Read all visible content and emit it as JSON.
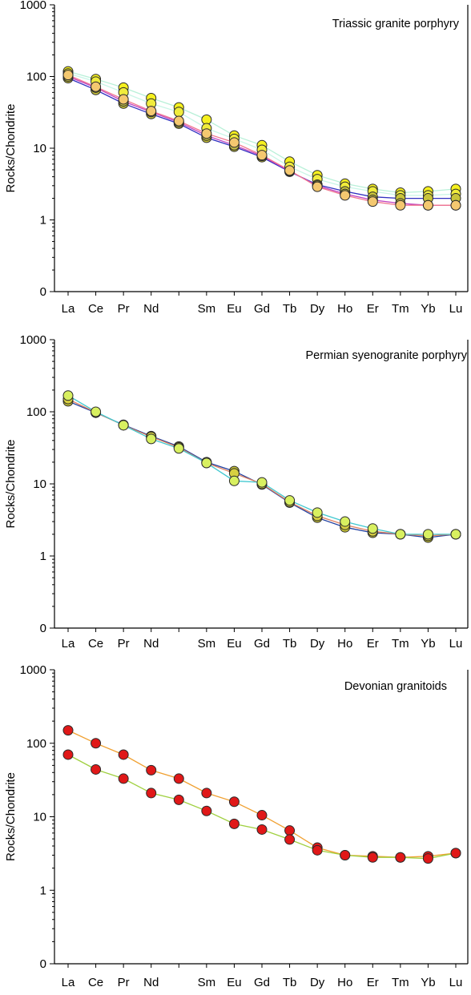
{
  "chart_data": [
    {
      "type": "line",
      "title": "Triassic granite porphyry",
      "xlabel": "",
      "ylabel": "Rocks/Chondrite",
      "yscale": "log",
      "ylim": [
        0.1,
        1000
      ],
      "y_ticks": [
        0.1,
        1,
        10,
        100,
        1000
      ],
      "y_tick_labels": [
        "0",
        "1",
        "10",
        "100",
        "1000"
      ],
      "categories": [
        "La",
        "Ce",
        "Pr",
        "Nd",
        "",
        "Sm",
        "Eu",
        "Gd",
        "Tb",
        "Dy",
        "Ho",
        "Er",
        "Tm",
        "Yb",
        "Lu"
      ],
      "grid": false,
      "series": [
        {
          "line_color": "#b8f0d8",
          "marker_color": "#f5f01e",
          "values": [
            118,
            92,
            70,
            50,
            37,
            25,
            15,
            11,
            6.5,
            4.2,
            3.2,
            2.7,
            2.4,
            2.5,
            2.7
          ]
        },
        {
          "line_color": "#c8f5e6",
          "marker_color": "#f0ec3c",
          "values": [
            110,
            85,
            60,
            42,
            32,
            19,
            13.5,
            9.5,
            5.5,
            3.7,
            2.9,
            2.5,
            2.2,
            2.2,
            2.3
          ]
        },
        {
          "line_color": "#3030c0",
          "marker_color": "#c9c43a",
          "values": [
            95,
            65,
            42,
            30,
            22,
            14,
            10.5,
            7.5,
            4.7,
            3.1,
            2.5,
            2.1,
            2.0,
            2.0,
            2.0
          ]
        },
        {
          "line_color": "#c040c0",
          "marker_color": "#c7c045",
          "values": [
            100,
            70,
            45,
            32,
            23,
            15,
            11,
            7.8,
            4.8,
            3.0,
            2.3,
            1.9,
            1.7,
            1.6,
            1.6
          ]
        },
        {
          "line_color": "#f07890",
          "marker_color": "#f4c870",
          "values": [
            105,
            72,
            48,
            33,
            24,
            16,
            12,
            8.0,
            4.9,
            2.9,
            2.2,
            1.8,
            1.6,
            1.6,
            1.6
          ]
        }
      ]
    },
    {
      "type": "line",
      "title": "Permian  syenogranite porphyry",
      "xlabel": "",
      "ylabel": "Rocks/Chondrite",
      "yscale": "log",
      "ylim": [
        0.1,
        1000
      ],
      "y_ticks": [
        0.1,
        1,
        10,
        100,
        1000
      ],
      "y_tick_labels": [
        "0",
        "1",
        "10",
        "100",
        "1000"
      ],
      "categories": [
        "La",
        "Ce",
        "Pr",
        "Nd",
        "",
        "Sm",
        "Eu",
        "Gd",
        "Tb",
        "Dy",
        "Ho",
        "Er",
        "Tm",
        "Yb",
        "Lu"
      ],
      "grid": false,
      "series": [
        {
          "line_color": "#2040a0",
          "marker_color": "#c8c438",
          "values": [
            140,
            97,
            66,
            46,
            33,
            20,
            15,
            9.8,
            5.5,
            3.4,
            2.5,
            2.1,
            2.0,
            1.8,
            2.0
          ]
        },
        {
          "line_color": "#e08060",
          "marker_color": "#d8d040",
          "values": [
            150,
            98,
            65,
            45,
            32,
            19.5,
            14,
            10,
            5.6,
            3.6,
            2.7,
            2.2,
            2.0,
            1.9,
            2.0
          ]
        },
        {
          "line_color": "#40c8d0",
          "marker_color": "#d8f060",
          "values": [
            168,
            100,
            65,
            42,
            31,
            19.5,
            11,
            10.5,
            5.9,
            4.0,
            3.0,
            2.4,
            2.0,
            2.0,
            2.0
          ]
        }
      ]
    },
    {
      "type": "line",
      "title": "Devonian granitoids",
      "xlabel": "",
      "ylabel": "Rocks/Chondrite",
      "yscale": "log",
      "ylim": [
        0.1,
        1000
      ],
      "y_ticks": [
        0.1,
        1,
        10,
        100,
        1000
      ],
      "y_tick_labels": [
        "0",
        "1",
        "10",
        "100",
        "1000"
      ],
      "categories": [
        "La",
        "Ce",
        "Pr",
        "Nd",
        "",
        "Sm",
        "Eu",
        "Gd",
        "Tb",
        "Dy",
        "Ho",
        "Er",
        "Tm",
        "Yb",
        "Lu"
      ],
      "grid": false,
      "series": [
        {
          "line_color": "#f0a030",
          "marker_color": "#e01818",
          "values": [
            150,
            100,
            70,
            43,
            33,
            21,
            16,
            10.5,
            6.5,
            3.8,
            3.0,
            2.9,
            2.8,
            2.9,
            3.2
          ]
        },
        {
          "line_color": "#a0d040",
          "marker_color": "#e01818",
          "values": [
            70,
            44,
            33,
            21,
            17,
            12,
            8,
            6.7,
            4.9,
            3.5,
            3.0,
            2.8,
            2.8,
            2.7,
            3.2
          ]
        }
      ]
    }
  ]
}
